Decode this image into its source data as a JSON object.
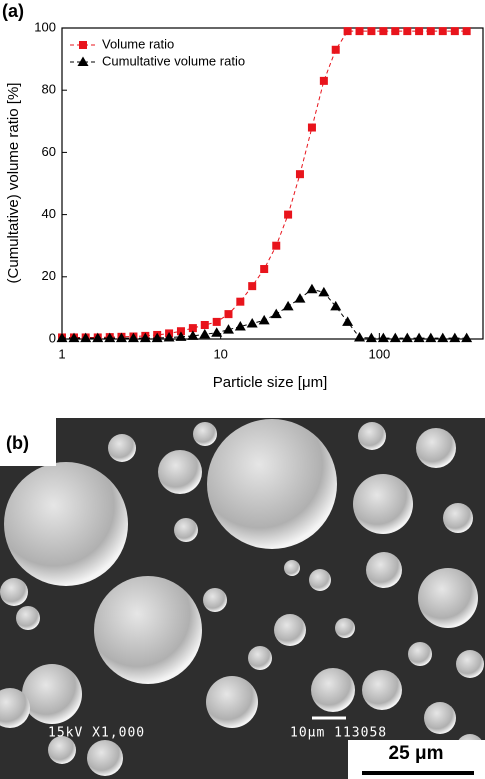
{
  "chart_data": {
    "type": "line",
    "panel_label": "(a)",
    "x_label": "Particle size [μm]",
    "y_label": "(Cumultative) volume ratio [%]",
    "log_x": true,
    "xlim": [
      1,
      450
    ],
    "xticks": [
      1,
      10,
      100
    ],
    "ylim": [
      0,
      100
    ],
    "yticks": [
      0,
      20,
      40,
      60,
      80,
      100
    ],
    "legend": "upper left",
    "x": [
      1,
      1.19,
      1.41,
      1.68,
      2.0,
      2.37,
      2.82,
      3.35,
      3.98,
      4.73,
      5.62,
      6.68,
      7.94,
      9.44,
      11.2,
      13.3,
      15.8,
      18.8,
      22.4,
      26.6,
      31.6,
      37.6,
      44.7,
      53.1,
      63.1,
      75.0,
      89.1,
      106,
      126,
      150,
      178,
      211,
      251,
      299,
      355
    ],
    "series": [
      {
        "name": "Volume ratio",
        "color": "#e8141c",
        "marker": "square",
        "values": [
          0.5,
          0.5,
          0.5,
          0.5,
          0.6,
          0.7,
          0.8,
          1.0,
          1.3,
          1.8,
          2.5,
          3.5,
          4.5,
          5.5,
          8,
          12,
          17,
          22.5,
          30,
          40,
          53,
          68,
          83,
          93,
          99,
          99,
          99,
          99,
          99,
          99,
          99,
          99,
          99,
          99,
          99
        ]
      },
      {
        "name": "Cumultative volume ratio",
        "color": "#000000",
        "marker": "triangle",
        "values": [
          0.3,
          0.3,
          0.3,
          0.3,
          0.3,
          0.3,
          0.3,
          0.3,
          0.3,
          0.5,
          0.7,
          1,
          1.5,
          2,
          3,
          4,
          5,
          6,
          8,
          10.5,
          13,
          16,
          15,
          10.5,
          5.5,
          0.5,
          0.3,
          0.3,
          0.3,
          0.3,
          0.3,
          0.3,
          0.3,
          0.3,
          0.3
        ]
      }
    ]
  },
  "micrograph": {
    "panel_label": "(b)",
    "info": "15kV X1,000",
    "marker_info": "10μm 113058",
    "scale_bar": "25 μm"
  }
}
